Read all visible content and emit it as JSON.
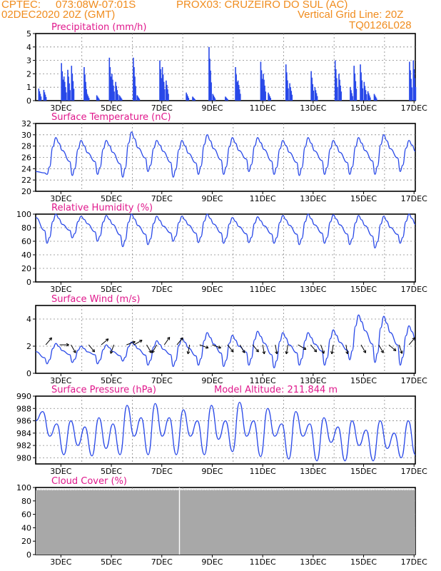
{
  "header": {
    "line1_left": "CPTEC:",
    "coords": "073:08W-07:01S",
    "station": "PROX03: CRUZEIRO DO SUL (AC)",
    "date": "02DEC2020 20Z (GMT)",
    "grid_note": "Vertical Grid Line: 20Z",
    "model_code": "TQ0126L028"
  },
  "colors": {
    "header": "#f08c1e",
    "title": "#e0188c",
    "series": "#2848e8",
    "cloud": "#a8a8a8"
  },
  "x_ticks": [
    "3DEC",
    "5DEC",
    "7DEC",
    "9DEC",
    "11DEC",
    "13DEC",
    "15DEC",
    "17DEC"
  ],
  "chart_data": [
    {
      "id": "precip",
      "type": "bar",
      "title": "Precipitation (mm/h)",
      "ylim": [
        0,
        5
      ],
      "yticks": [
        0,
        1,
        2,
        3,
        4,
        5
      ],
      "events": [
        {
          "x": 2.1,
          "v": 0.9
        },
        {
          "x": 2.3,
          "v": 0.8
        },
        {
          "x": 3.0,
          "v": 2.8
        },
        {
          "x": 3.1,
          "v": 1.8
        },
        {
          "x": 3.25,
          "v": 2.3
        },
        {
          "x": 3.4,
          "v": 2.6
        },
        {
          "x": 3.9,
          "v": 2.5
        },
        {
          "x": 4.0,
          "v": 0.6
        },
        {
          "x": 4.4,
          "v": 0.4
        },
        {
          "x": 4.9,
          "v": 3.2
        },
        {
          "x": 5.0,
          "v": 2.0
        },
        {
          "x": 5.15,
          "v": 1.4
        },
        {
          "x": 5.3,
          "v": 0.4
        },
        {
          "x": 5.85,
          "v": 3.2
        },
        {
          "x": 6.0,
          "v": 0.4
        },
        {
          "x": 6.9,
          "v": 3.0
        },
        {
          "x": 7.0,
          "v": 2.5
        },
        {
          "x": 7.15,
          "v": 1.5
        },
        {
          "x": 7.95,
          "v": 0.6
        },
        {
          "x": 8.2,
          "v": 0.3
        },
        {
          "x": 8.85,
          "v": 4.0
        },
        {
          "x": 9.0,
          "v": 0.5
        },
        {
          "x": 9.5,
          "v": 0.3
        },
        {
          "x": 9.9,
          "v": 2.5
        },
        {
          "x": 10.0,
          "v": 1.5
        },
        {
          "x": 10.9,
          "v": 2.9
        },
        {
          "x": 11.0,
          "v": 2.0
        },
        {
          "x": 11.2,
          "v": 0.6
        },
        {
          "x": 11.9,
          "v": 2.7
        },
        {
          "x": 12.05,
          "v": 1.3
        },
        {
          "x": 12.9,
          "v": 2.2
        },
        {
          "x": 13.05,
          "v": 1.0
        },
        {
          "x": 13.85,
          "v": 3.0
        },
        {
          "x": 14.0,
          "v": 2.0
        },
        {
          "x": 14.45,
          "v": 1.0
        },
        {
          "x": 14.6,
          "v": 2.6
        },
        {
          "x": 14.85,
          "v": 2.7
        },
        {
          "x": 15.0,
          "v": 1.4
        },
        {
          "x": 15.15,
          "v": 0.7
        },
        {
          "x": 15.4,
          "v": 0.5
        },
        {
          "x": 16.8,
          "v": 2.9
        },
        {
          "x": 16.95,
          "v": 3.0
        }
      ]
    },
    {
      "id": "temp",
      "type": "line",
      "title": "Surface Temperature (nC)",
      "ylim": [
        20,
        32
      ],
      "yticks": [
        20,
        22,
        24,
        26,
        28,
        30,
        32
      ],
      "lows": [
        23.0,
        22.8,
        23.0,
        22.5,
        23.5,
        22.5,
        23.0,
        23.0,
        23.5,
        23.0,
        22.8,
        23.0,
        23.0,
        23.0,
        23.5,
        23.0
      ],
      "highs": [
        29.5,
        29.0,
        29.0,
        30.5,
        29.0,
        29.0,
        30.0,
        29.5,
        29.5,
        29.0,
        29.5,
        29.0,
        29.5,
        30.0,
        29.0,
        28.5
      ],
      "start": 23.5
    },
    {
      "id": "rh",
      "type": "line",
      "title": "Relative Humidity (%)",
      "ylim": [
        0,
        100
      ],
      "yticks": [
        0,
        20,
        40,
        60,
        80,
        100
      ],
      "highs": [
        100,
        97,
        98,
        100,
        97,
        97,
        100,
        95,
        96,
        98,
        100,
        99,
        98,
        97,
        100,
        99
      ],
      "lows": [
        57,
        65,
        60,
        52,
        55,
        60,
        58,
        57,
        58,
        57,
        55,
        57,
        55,
        50,
        57,
        60
      ],
      "start": 95
    },
    {
      "id": "wind",
      "type": "line",
      "title": "Surface Wind (m/s)",
      "ylim": [
        0,
        5
      ],
      "yticks": [
        0,
        2,
        4
      ],
      "highs": [
        2.2,
        2.0,
        2.1,
        2.3,
        2.4,
        2.6,
        3.0,
        2.8,
        3.1,
        3.0,
        3.0,
        3.2,
        4.3,
        4.2,
        3.5,
        3.0
      ],
      "lows": [
        0.7,
        0.8,
        0.7,
        0.9,
        0.6,
        0.5,
        0.6,
        0.5,
        0.6,
        0.4,
        0.6,
        0.6,
        1.0,
        0.8,
        0.6,
        0.5
      ],
      "start": 1.6,
      "arrows": [
        {
          "x": 2.4,
          "dir": 40
        },
        {
          "x": 2.95,
          "dir": 90
        },
        {
          "x": 3.4,
          "dir": 150
        },
        {
          "x": 4.1,
          "dir": 140
        },
        {
          "x": 4.6,
          "dir": 50
        },
        {
          "x": 5.1,
          "dir": 200
        },
        {
          "x": 5.6,
          "dir": 70
        },
        {
          "x": 5.9,
          "dir": 60
        },
        {
          "x": 6.4,
          "dir": 150
        },
        {
          "x": 6.8,
          "dir": 210
        },
        {
          "x": 7.1,
          "dir": 35
        },
        {
          "x": 7.6,
          "dir": 40
        },
        {
          "x": 8.1,
          "dir": 190
        },
        {
          "x": 8.5,
          "dir": 110
        },
        {
          "x": 9.0,
          "dir": 110
        },
        {
          "x": 9.6,
          "dir": 140
        },
        {
          "x": 10.1,
          "dir": 150
        },
        {
          "x": 10.6,
          "dir": 140
        },
        {
          "x": 11.0,
          "dir": 170
        },
        {
          "x": 11.5,
          "dir": 170
        },
        {
          "x": 12.0,
          "dir": 190
        },
        {
          "x": 12.4,
          "dir": 120
        },
        {
          "x": 12.9,
          "dir": 140
        },
        {
          "x": 13.3,
          "dir": 160
        },
        {
          "x": 13.8,
          "dir": 190
        },
        {
          "x": 14.3,
          "dir": 170
        },
        {
          "x": 14.9,
          "dir": 150
        },
        {
          "x": 15.6,
          "dir": 150
        },
        {
          "x": 16.0,
          "dir": 130
        },
        {
          "x": 16.4,
          "dir": 160
        },
        {
          "x": 16.8,
          "dir": 40
        }
      ]
    },
    {
      "id": "press",
      "type": "line",
      "title": "Surface Pressure (hPa)",
      "annotation": "Model Altitude: 211.844 m",
      "ylim": [
        979,
        990
      ],
      "yticks": [
        980,
        982,
        984,
        986,
        988,
        990
      ],
      "seq": [
        986,
        987.5,
        983.5,
        985.5,
        980.5,
        986,
        982,
        985,
        980.3,
        986.5,
        981.5,
        985.5,
        980.5,
        988.5,
        983.5,
        986.5,
        980.5,
        988.8,
        983.5,
        986.5,
        980.5,
        987.8,
        983.5,
        986,
        980.5,
        988.5,
        983,
        986,
        981,
        989,
        983.5,
        986,
        980.2,
        988,
        983.5,
        985.5,
        979.8,
        987.5,
        983.5,
        985.5,
        979.5,
        986.5,
        982.5,
        985,
        979.5,
        986,
        982,
        984.5,
        979.5,
        986,
        981.5,
        984,
        980,
        986,
        980.5
      ]
    },
    {
      "id": "cloud",
      "type": "area",
      "title": "Cloud Cover (%)",
      "ylim": [
        0,
        100
      ],
      "yticks": [
        0,
        20,
        40,
        60,
        80,
        100
      ],
      "base": 98,
      "gap_x": 7.7
    }
  ]
}
